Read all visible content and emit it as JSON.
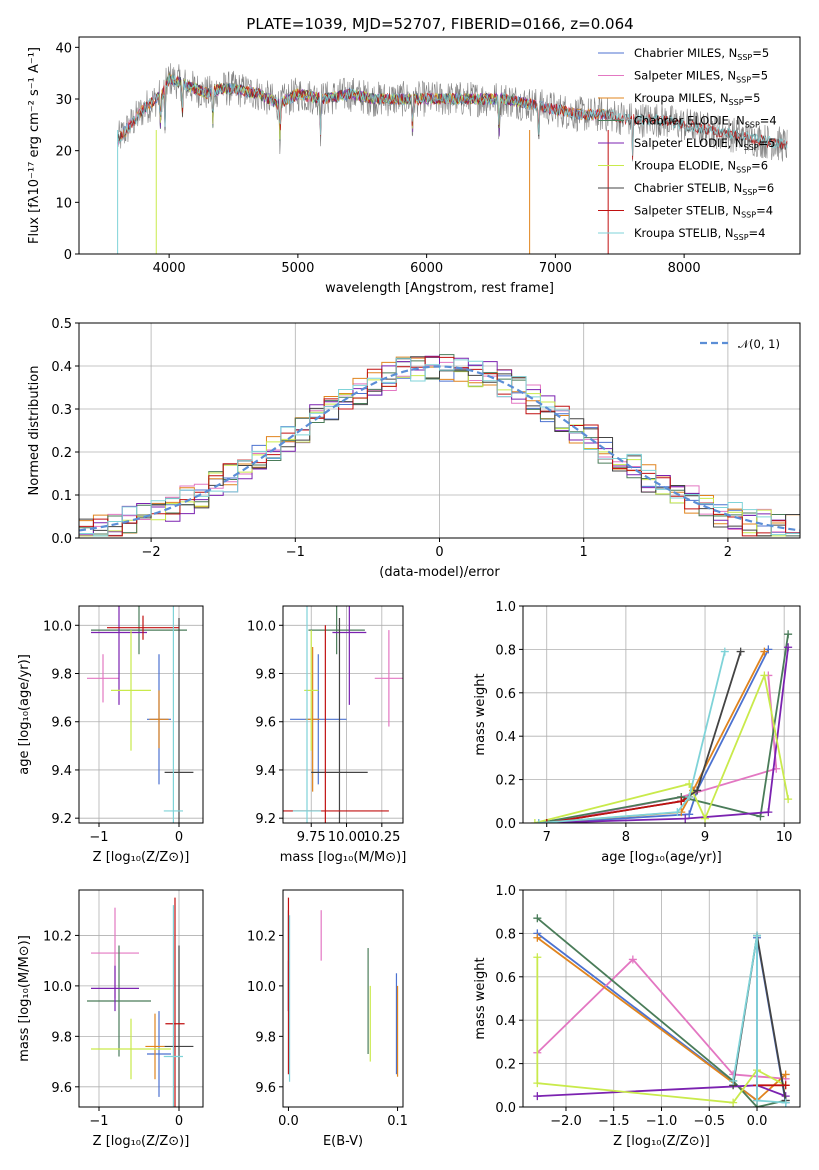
{
  "colors": {
    "Chabrier MILES": "#4c72d0",
    "Salpeter MILES": "#e377c2",
    "Kroupa MILES": "#e0841e",
    "Chabrier ELODIE": "#4a7c59",
    "Salpeter ELODIE": "#7b22b0",
    "Kroupa ELODIE": "#c9ea4b",
    "Chabrier STELIB": "#444444",
    "Salpeter STELIB": "#c01010",
    "Kroupa STELIB": "#7fd3d8",
    "data": "#808080",
    "normal": "#5b8ed6"
  },
  "chart_data": [
    {
      "id": "spectrum",
      "type": "line",
      "title": "PLATE=1039, MJD=52707, FIBERID=0166, z=0.064",
      "xlabel": "wavelength [Angstrom, rest frame]",
      "ylabel": "Flux [fλ10⁻¹⁷ erg cm⁻² s⁻¹ A⁻¹]",
      "xlim": [
        3300,
        8900
      ],
      "ylim": [
        0,
        42
      ],
      "xticks": [
        4000,
        5000,
        6000,
        7000,
        8000
      ],
      "yticks": [
        0,
        10,
        20,
        30,
        40
      ],
      "grid": false,
      "legend_position": "top-right",
      "legend": [
        "Chabrier MILES, N_SSP=5",
        "Salpeter MILES, N_SSP=5",
        "Kroupa MILES, N_SSP=5",
        "Chabrier ELODIE, N_SSP=4",
        "Salpeter ELODIE, N_SSP=5",
        "Kroupa ELODIE, N_SSP=6",
        "Chabrier STELIB, N_SSP=6",
        "Salpeter STELIB, N_SSP=4",
        "Kroupa STELIB, N_SSP=4"
      ],
      "continuum": {
        "x": [
          3600,
          3700,
          3800,
          3900,
          3950,
          4000,
          4100,
          4200,
          4300,
          4400,
          4500,
          4700,
          4850,
          5000,
          5200,
          5400,
          5600,
          5800,
          6000,
          6200,
          6400,
          6600,
          6800,
          7000,
          7200,
          7400,
          7600,
          7800,
          8000,
          8200,
          8400,
          8600,
          8800
        ],
        "y": [
          22,
          25,
          28,
          30,
          31,
          34,
          33,
          32,
          31,
          32,
          32,
          31,
          29,
          31,
          30,
          31,
          30,
          30,
          30,
          30,
          30,
          30,
          29,
          28,
          27,
          27,
          26,
          26,
          25,
          24,
          23,
          22,
          21
        ]
      },
      "model_ranges": {
        "Chabrier MILES": [
          3600,
          7400
        ],
        "Salpeter MILES": [
          3600,
          7400
        ],
        "Kroupa MILES": [
          3600,
          7400
        ],
        "Chabrier ELODIE": [
          3900,
          6800
        ],
        "Salpeter ELODIE": [
          3900,
          6800
        ],
        "Kroupa ELODIE": [
          3900,
          6800
        ],
        "Chabrier STELIB": [
          3600,
          8800
        ],
        "Salpeter STELIB": [
          3600,
          8800
        ],
        "Kroupa STELIB": [
          3600,
          8800
        ]
      }
    },
    {
      "id": "residuals",
      "type": "line",
      "xlabel": "(data-model)/error",
      "ylabel": "Normed distribution",
      "xlim": [
        -2.5,
        2.5
      ],
      "ylim": [
        0,
        0.5
      ],
      "xticks": [
        -2,
        -1,
        0,
        1,
        2
      ],
      "yticks": [
        0.0,
        0.1,
        0.2,
        0.3,
        0.4,
        0.5
      ],
      "grid": true,
      "legend_position": "top-right",
      "legend": [
        "𝒩(0, 1)"
      ],
      "bin_width": 0.1
    },
    {
      "id": "age-vs-Z",
      "type": "scatter",
      "xlabel": "Z [log₁₀(Z/Z⊙)]",
      "ylabel": "age  [log₁₀(age/yr)]",
      "xlim": [
        -1.25,
        0.3
      ],
      "ylim": [
        9.18,
        10.08
      ],
      "xticks": [
        -1,
        0
      ],
      "yticks": [
        9.2,
        9.4,
        9.6,
        9.8,
        10.0
      ],
      "grid": true,
      "points": [
        {
          "model": "Chabrier MILES",
          "x": -0.25,
          "y": 9.61,
          "xerr": 0.15,
          "yerr": 0.27
        },
        {
          "model": "Salpeter MILES",
          "x": -0.95,
          "y": 9.78,
          "xerr": 0.2,
          "yerr": 0.1
        },
        {
          "model": "Kroupa MILES",
          "x": -0.25,
          "y": 9.61,
          "xerr": 0.12,
          "yerr": 0.12
        },
        {
          "model": "Chabrier ELODIE",
          "x": -0.5,
          "y": 9.98,
          "xerr": 0.6,
          "yerr": 0.1
        },
        {
          "model": "Salpeter ELODIE",
          "x": -0.75,
          "y": 9.97,
          "xerr": 0.35,
          "yerr": 0.3
        },
        {
          "model": "Kroupa ELODIE",
          "x": -0.6,
          "y": 9.73,
          "xerr": 0.25,
          "yerr": 0.25
        },
        {
          "model": "Chabrier STELIB",
          "x": 0.0,
          "y": 9.39,
          "xerr": 0.18,
          "yerr": 0.64
        },
        {
          "model": "Salpeter STELIB",
          "x": -0.45,
          "y": 9.99,
          "xerr": 0.45,
          "yerr": 0.05
        },
        {
          "model": "Kroupa STELIB",
          "x": -0.07,
          "y": 9.23,
          "xerr": 0.12,
          "yerr": 0.85
        }
      ]
    },
    {
      "id": "age-vs-mass",
      "type": "scatter",
      "xlabel": "mass [log₁₀(M/M⊙)]",
      "ylabel": "",
      "xlim": [
        9.55,
        10.4
      ],
      "ylim": [
        9.18,
        10.08
      ],
      "xticks": [
        9.75,
        10.0,
        10.25
      ],
      "yticks": [
        9.2,
        9.4,
        9.6,
        9.8,
        10.0
      ],
      "grid": true,
      "points": [
        {
          "model": "Chabrier MILES",
          "x": 9.8,
          "y": 9.61,
          "xerr": 0.2,
          "yerr": 0.27
        },
        {
          "model": "Salpeter MILES",
          "x": 10.3,
          "y": 9.78,
          "xerr": 0.1,
          "yerr": 0.2
        },
        {
          "model": "Kroupa MILES",
          "x": 9.76,
          "y": 9.61,
          "xerr": 0.05,
          "yerr": 0.3
        },
        {
          "model": "Chabrier ELODIE",
          "x": 9.93,
          "y": 9.98,
          "xerr": 0.2,
          "yerr": 0.1
        },
        {
          "model": "Salpeter ELODIE",
          "x": 10.02,
          "y": 9.97,
          "xerr": 0.12,
          "yerr": 0.3
        },
        {
          "model": "Kroupa ELODIE",
          "x": 9.75,
          "y": 9.73,
          "xerr": 0.05,
          "yerr": 0.25
        },
        {
          "model": "Chabrier STELIB",
          "x": 9.95,
          "y": 9.39,
          "xerr": 0.2,
          "yerr": 0.64
        },
        {
          "model": "Salpeter STELIB",
          "x": 9.85,
          "y": 9.23,
          "xerr": 0.45,
          "yerr": 0.77
        },
        {
          "model": "Kroupa STELIB",
          "x": 9.72,
          "y": 9.23,
          "xerr": 0.1,
          "yerr": 0.85
        }
      ]
    },
    {
      "id": "weight-vs-age",
      "type": "line",
      "xlabel": "age  [log₁₀(age/yr)]",
      "ylabel": "mass weight",
      "xlim": [
        6.7,
        10.2
      ],
      "ylim": [
        0,
        1.0
      ],
      "xticks": [
        7,
        8,
        9,
        10
      ],
      "yticks": [
        0.0,
        0.2,
        0.4,
        0.6,
        0.8,
        1.0
      ],
      "grid": true,
      "series": [
        {
          "model": "Chabrier MILES",
          "x": [
            7.0,
            8.8,
            8.9,
            9.8
          ],
          "y": [
            0.0,
            0.04,
            0.15,
            0.8
          ]
        },
        {
          "model": "Salpeter MILES",
          "x": [
            7.0,
            8.7,
            9.9,
            9.8
          ],
          "y": [
            0.0,
            0.12,
            0.25,
            0.68
          ]
        },
        {
          "model": "Kroupa MILES",
          "x": [
            6.9,
            8.7,
            8.85,
            9.75
          ],
          "y": [
            0.0,
            0.05,
            0.15,
            0.79
          ]
        },
        {
          "model": "Chabrier ELODIE",
          "x": [
            6.9,
            8.7,
            9.7,
            10.05
          ],
          "y": [
            0.0,
            0.12,
            0.03,
            0.87
          ]
        },
        {
          "model": "Salpeter ELODIE",
          "x": [
            6.9,
            8.75,
            9.8,
            10.05
          ],
          "y": [
            0.0,
            0.02,
            0.05,
            0.81
          ]
        },
        {
          "model": "Kroupa ELODIE",
          "x": [
            6.85,
            8.8,
            9.0,
            9.75,
            10.05
          ],
          "y": [
            0.0,
            0.18,
            0.02,
            0.68,
            0.11
          ]
        },
        {
          "model": "Chabrier STELIB",
          "x": [
            7.0,
            8.7,
            8.9,
            9.45
          ],
          "y": [
            0.0,
            0.1,
            0.15,
            0.79
          ]
        },
        {
          "model": "Salpeter STELIB",
          "x": [
            7.0,
            8.7,
            8.8
          ],
          "y": [
            0.0,
            0.1,
            0.12
          ]
        },
        {
          "model": "Kroupa STELIB",
          "x": [
            6.9,
            8.65,
            8.8,
            9.25
          ],
          "y": [
            0.0,
            0.05,
            0.12,
            0.79
          ]
        }
      ]
    },
    {
      "id": "mass-vs-Z",
      "type": "scatter",
      "xlabel": "Z [log₁₀(Z/Z⊙)]",
      "ylabel": "mass [log₁₀(M/M⊙)]",
      "xlim": [
        -1.25,
        0.3
      ],
      "ylim": [
        9.52,
        10.38
      ],
      "xticks": [
        -1,
        0
      ],
      "yticks": [
        9.6,
        9.8,
        10.0,
        10.2
      ],
      "grid": true,
      "points": [
        {
          "model": "Chabrier MILES",
          "x": -0.25,
          "y": 9.73,
          "xerr": 0.15,
          "yerr": 0.17
        },
        {
          "model": "Salpeter MILES",
          "x": -0.8,
          "y": 10.13,
          "xerr": 0.3,
          "yerr": 0.18
        },
        {
          "model": "Kroupa MILES",
          "x": -0.3,
          "y": 9.76,
          "xerr": 0.12,
          "yerr": 0.13
        },
        {
          "model": "Chabrier ELODIE",
          "x": -0.75,
          "y": 9.94,
          "xerr": 0.4,
          "yerr": 0.22
        },
        {
          "model": "Salpeter ELODIE",
          "x": -0.8,
          "y": 9.99,
          "xerr": 0.3,
          "yerr": 0.09
        },
        {
          "model": "Kroupa ELODIE",
          "x": -0.6,
          "y": 9.75,
          "xerr": 0.5,
          "yerr": 0.12
        },
        {
          "model": "Chabrier STELIB",
          "x": 0.0,
          "y": 9.76,
          "xerr": 0.18,
          "yerr": 0.4
        },
        {
          "model": "Salpeter STELIB",
          "x": -0.05,
          "y": 9.85,
          "xerr": 0.12,
          "yerr": 0.5
        },
        {
          "model": "Kroupa STELIB",
          "x": -0.07,
          "y": 9.72,
          "xerr": 0.12,
          "yerr": 0.6
        }
      ]
    },
    {
      "id": "mass-vs-EBV",
      "type": "scatter",
      "xlabel": "E(B-V)",
      "ylabel": "",
      "xlim": [
        -0.005,
        0.105
      ],
      "ylim": [
        9.52,
        10.38
      ],
      "xticks": [
        0.0,
        0.1
      ],
      "yticks": [
        9.6,
        9.8,
        10.0,
        10.2
      ],
      "grid": false,
      "points": [
        {
          "model": "Chabrier MILES",
          "x": 0.099,
          "y": 9.85,
          "yerr": 0.2
        },
        {
          "model": "Salpeter MILES",
          "x": 0.03,
          "y": 10.2,
          "yerr": 0.1
        },
        {
          "model": "Kroupa MILES",
          "x": 0.1,
          "y": 9.82,
          "yerr": 0.18
        },
        {
          "model": "Chabrier ELODIE",
          "x": 0.073,
          "y": 9.94,
          "yerr": 0.21
        },
        {
          "model": "Salpeter ELODIE",
          "x": 0.0,
          "y": 10.0,
          "yerr": 0.1
        },
        {
          "model": "Kroupa ELODIE",
          "x": 0.075,
          "y": 9.85,
          "yerr": 0.15
        },
        {
          "model": "Chabrier STELIB",
          "x": 0.0,
          "y": 10.1,
          "yerr": 0.2
        },
        {
          "model": "Salpeter STELIB",
          "x": 0.0,
          "y": 10.0,
          "yerr": 0.35
        },
        {
          "model": "Kroupa STELIB",
          "x": 0.001,
          "y": 9.95,
          "yerr": 0.33
        }
      ]
    },
    {
      "id": "weight-vs-Z",
      "type": "line",
      "xlabel": "Z [log₁₀(Z/Z⊙)]",
      "ylabel": "mass weight",
      "xlim": [
        -2.45,
        0.45
      ],
      "ylim": [
        0,
        1.0
      ],
      "xticks": [
        -2.0,
        -1.5,
        -1.0,
        -0.5,
        0.0
      ],
      "yticks": [
        0.0,
        0.2,
        0.4,
        0.6,
        0.8,
        1.0
      ],
      "grid": true,
      "series": [
        {
          "model": "Chabrier MILES",
          "x": [
            -2.3,
            0.0,
            0.0,
            0.3
          ],
          "y": [
            0.8,
            0.03,
            0.78,
            0.02
          ]
        },
        {
          "model": "Salpeter MILES",
          "x": [
            -2.3,
            -1.3,
            -0.25,
            0.3
          ],
          "y": [
            0.25,
            0.68,
            0.15,
            0.13
          ]
        },
        {
          "model": "Kroupa MILES",
          "x": [
            -2.3,
            0.0,
            0.3
          ],
          "y": [
            0.78,
            0.03,
            0.15
          ]
        },
        {
          "model": "Chabrier ELODIE",
          "x": [
            -2.3,
            -0.25,
            0.0,
            0.3
          ],
          "y": [
            0.87,
            0.12,
            0.0,
            0.03
          ]
        },
        {
          "model": "Salpeter ELODIE",
          "x": [
            -2.3,
            0.0,
            0.3
          ],
          "y": [
            0.05,
            0.1,
            0.05
          ]
        },
        {
          "model": "Kroupa ELODIE",
          "x": [
            -2.3,
            -2.3,
            -0.25,
            0.0,
            0.3
          ],
          "y": [
            0.69,
            0.11,
            0.02,
            0.17,
            0.1
          ]
        },
        {
          "model": "Chabrier STELIB",
          "x": [
            -0.25,
            0.0,
            0.3
          ],
          "y": [
            0.1,
            0.79,
            0.03
          ]
        },
        {
          "model": "Salpeter STELIB",
          "x": [
            0.0,
            0.3
          ],
          "y": [
            0.1,
            0.1
          ]
        },
        {
          "model": "Kroupa STELIB",
          "x": [
            -0.25,
            0.0,
            0.0,
            0.3
          ],
          "y": [
            0.12,
            0.79,
            0.03,
            0.02
          ]
        }
      ]
    }
  ]
}
